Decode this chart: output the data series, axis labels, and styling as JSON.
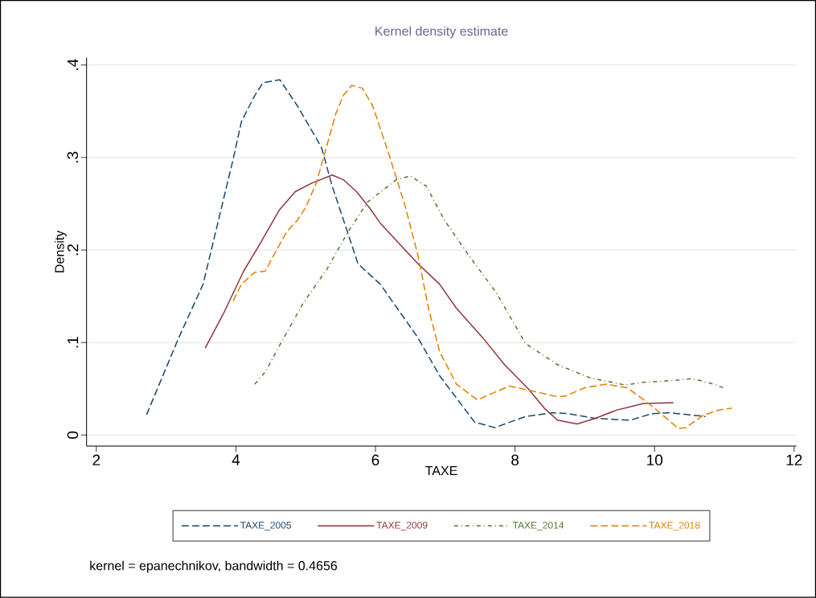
{
  "chart_data": {
    "type": "line",
    "title": "Kernel density estimate",
    "xlabel": "TAXE",
    "ylabel": "Density",
    "annotations": [
      "kernel = epanechnikov, bandwidth = 0.4656"
    ],
    "xlim": [
      1.86,
      12.03
    ],
    "xticks": [
      2,
      4,
      6,
      8,
      10,
      12
    ],
    "ylim": [
      -0.012,
      0.408
    ],
    "yticks": [
      {
        "value": 0,
        "label": "0"
      },
      {
        "value": 0.1,
        "label": ".1"
      },
      {
        "value": 0.2,
        "label": ".2"
      },
      {
        "value": 0.3,
        "label": ".3"
      },
      {
        "value": 0.4,
        "label": ".4"
      }
    ],
    "grid": "y",
    "legend": "bottom",
    "marker": "none",
    "series": [
      {
        "name": "TAXE_2005",
        "color": "#1a476f",
        "line_style": "dashed",
        "x": [
          2.72,
          3.18,
          3.53,
          3.96,
          4.08,
          4.27,
          4.39,
          4.63,
          4.88,
          5.15,
          5.23,
          5.38,
          5.61,
          5.75,
          6.07,
          6.61,
          6.92,
          7.42,
          7.71,
          8.15,
          8.54,
          8.77,
          9.15,
          9.65,
          9.96,
          10.22,
          10.73
        ],
        "values": [
          0.022,
          0.105,
          0.163,
          0.298,
          0.339,
          0.367,
          0.381,
          0.384,
          0.356,
          0.321,
          0.31,
          0.269,
          0.217,
          0.185,
          0.163,
          0.105,
          0.064,
          0.014,
          0.008,
          0.02,
          0.024,
          0.023,
          0.018,
          0.016,
          0.023,
          0.024,
          0.02
        ]
      },
      {
        "name": "TAXE_2009",
        "color": "#90353b",
        "line_style": "solid",
        "x": [
          3.56,
          3.82,
          4.11,
          4.34,
          4.62,
          4.85,
          5.08,
          5.38,
          5.54,
          5.73,
          5.92,
          6.07,
          6.61,
          6.92,
          7.16,
          7.54,
          7.85,
          8.19,
          8.42,
          8.61,
          8.89,
          9.15,
          9.46,
          9.84,
          10.27
        ],
        "values": [
          0.094,
          0.131,
          0.177,
          0.206,
          0.243,
          0.263,
          0.272,
          0.281,
          0.276,
          0.263,
          0.245,
          0.229,
          0.185,
          0.163,
          0.137,
          0.105,
          0.076,
          0.05,
          0.029,
          0.016,
          0.012,
          0.018,
          0.027,
          0.034,
          0.035
        ]
      },
      {
        "name": "TAXE_2014",
        "color": "#55752f",
        "line_style": "dotted",
        "x": [
          4.27,
          4.42,
          4.62,
          4.96,
          5.31,
          5.61,
          5.89,
          6.3,
          6.5,
          6.73,
          6.99,
          7.34,
          7.73,
          8.15,
          8.61,
          9.07,
          9.58,
          9.84,
          10.3,
          10.54,
          10.85,
          11.02
        ],
        "values": [
          0.055,
          0.068,
          0.096,
          0.142,
          0.18,
          0.22,
          0.252,
          0.276,
          0.28,
          0.269,
          0.232,
          0.194,
          0.154,
          0.099,
          0.076,
          0.062,
          0.054,
          0.057,
          0.059,
          0.061,
          0.055,
          0.05
        ]
      },
      {
        "name": "TAXE_2018",
        "color": "#e37e00",
        "line_style": "dashed",
        "x": [
          3.96,
          4.08,
          4.27,
          4.42,
          4.54,
          4.73,
          4.88,
          5.0,
          5.15,
          5.26,
          5.43,
          5.54,
          5.66,
          5.81,
          5.96,
          6.19,
          6.42,
          6.61,
          6.76,
          6.92,
          7.16,
          7.46,
          7.92,
          8.23,
          8.57,
          8.72,
          9.0,
          9.3,
          9.61,
          9.81,
          10.0,
          10.34,
          10.45,
          10.69,
          10.92,
          11.11
        ],
        "values": [
          0.145,
          0.163,
          0.176,
          0.177,
          0.194,
          0.22,
          0.232,
          0.246,
          0.272,
          0.301,
          0.347,
          0.367,
          0.378,
          0.375,
          0.356,
          0.304,
          0.249,
          0.194,
          0.137,
          0.09,
          0.055,
          0.038,
          0.053,
          0.048,
          0.042,
          0.042,
          0.051,
          0.055,
          0.051,
          0.04,
          0.029,
          0.007,
          0.008,
          0.021,
          0.027,
          0.029
        ]
      }
    ]
  }
}
